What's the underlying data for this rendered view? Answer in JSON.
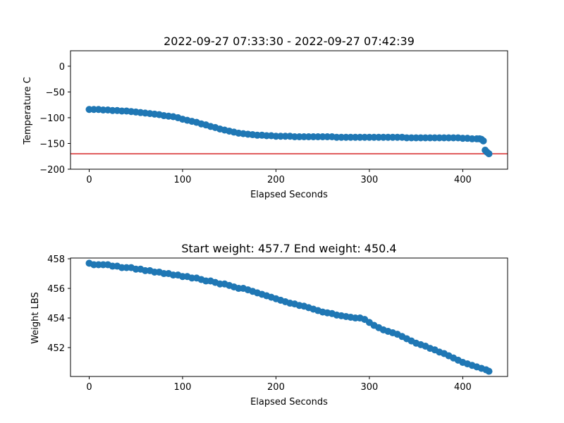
{
  "chart_data": [
    {
      "type": "scatter",
      "title": "2022-09-27 07:33:30 - 2022-09-27 07:42:39",
      "xlabel": "Elapsed Seconds",
      "ylabel": "Temperature C",
      "xlim": [
        -20,
        448
      ],
      "ylim": [
        -200,
        30
      ],
      "xticks": [
        0,
        100,
        200,
        300,
        400
      ],
      "yticks": [
        0,
        -50,
        -100,
        -150,
        -200
      ],
      "marker_color": "#1f77b4",
      "reference_line": {
        "y": -170,
        "color": "#d62728"
      },
      "grid": false,
      "x": [
        0,
        5,
        10,
        15,
        20,
        25,
        30,
        35,
        40,
        45,
        50,
        55,
        60,
        65,
        70,
        75,
        80,
        85,
        90,
        95,
        100,
        105,
        110,
        115,
        120,
        125,
        130,
        135,
        140,
        145,
        150,
        155,
        160,
        165,
        170,
        175,
        180,
        185,
        190,
        195,
        200,
        205,
        210,
        215,
        220,
        225,
        230,
        235,
        240,
        245,
        250,
        255,
        260,
        265,
        270,
        275,
        280,
        285,
        290,
        295,
        300,
        305,
        310,
        315,
        320,
        325,
        330,
        335,
        340,
        345,
        350,
        355,
        360,
        365,
        370,
        375,
        380,
        385,
        390,
        395,
        400,
        405,
        410,
        415,
        418,
        420,
        422,
        424,
        426,
        428
      ],
      "y": [
        -84,
        -84,
        -84,
        -85,
        -85,
        -86,
        -86,
        -87,
        -87,
        -88,
        -89,
        -90,
        -91,
        -92,
        -93,
        -94,
        -96,
        -97,
        -98,
        -100,
        -103,
        -105,
        -107,
        -109,
        -112,
        -114,
        -117,
        -119,
        -122,
        -124,
        -126,
        -128,
        -130,
        -131,
        -132,
        -133,
        -134,
        -134,
        -135,
        -135,
        -136,
        -136,
        -136,
        -136,
        -137,
        -137,
        -137,
        -137,
        -137,
        -137,
        -137,
        -137,
        -137,
        -138,
        -138,
        -138,
        -138,
        -138,
        -138,
        -138,
        -138,
        -138,
        -138,
        -138,
        -138,
        -138,
        -138,
        -138,
        -139,
        -139,
        -139,
        -139,
        -139,
        -139,
        -139,
        -139,
        -139,
        -139,
        -139,
        -139,
        -140,
        -140,
        -141,
        -141,
        -141,
        -142,
        -145,
        -163,
        -167,
        -170
      ]
    },
    {
      "type": "scatter",
      "title": "Start weight: 457.7 End weight: 450.4",
      "xlabel": "Elapsed Seconds",
      "ylabel": "Weight LBS",
      "xlim": [
        -20,
        448
      ],
      "ylim": [
        450.05,
        458.05
      ],
      "xticks": [
        0,
        100,
        200,
        300,
        400
      ],
      "yticks": [
        458,
        456,
        454,
        452
      ],
      "marker_color": "#1f77b4",
      "grid": false,
      "x": [
        0,
        5,
        10,
        15,
        20,
        25,
        30,
        35,
        40,
        45,
        50,
        55,
        60,
        65,
        70,
        75,
        80,
        85,
        90,
        95,
        100,
        105,
        110,
        115,
        120,
        125,
        130,
        135,
        140,
        145,
        150,
        155,
        160,
        165,
        170,
        175,
        180,
        185,
        190,
        195,
        200,
        205,
        210,
        215,
        220,
        225,
        230,
        235,
        240,
        245,
        250,
        255,
        260,
        265,
        270,
        275,
        280,
        285,
        290,
        295,
        300,
        305,
        310,
        315,
        320,
        325,
        330,
        335,
        340,
        345,
        350,
        355,
        360,
        365,
        370,
        375,
        380,
        385,
        390,
        395,
        400,
        405,
        410,
        415,
        420,
        425,
        428
      ],
      "y": [
        457.7,
        457.6,
        457.6,
        457.6,
        457.6,
        457.5,
        457.5,
        457.4,
        457.4,
        457.4,
        457.3,
        457.3,
        457.2,
        457.2,
        457.1,
        457.1,
        457.0,
        457.0,
        456.9,
        456.9,
        456.8,
        456.8,
        456.7,
        456.7,
        456.6,
        456.5,
        456.5,
        456.4,
        456.3,
        456.3,
        456.2,
        456.1,
        456.0,
        456.0,
        455.9,
        455.8,
        455.7,
        455.6,
        455.5,
        455.4,
        455.3,
        455.2,
        455.1,
        455.0,
        454.95,
        454.85,
        454.8,
        454.7,
        454.6,
        454.5,
        454.4,
        454.35,
        454.3,
        454.2,
        454.15,
        454.1,
        454.05,
        454.0,
        454.0,
        453.9,
        453.7,
        453.5,
        453.35,
        453.2,
        453.1,
        453.0,
        452.9,
        452.75,
        452.6,
        452.45,
        452.3,
        452.2,
        452.1,
        451.95,
        451.85,
        451.7,
        451.6,
        451.45,
        451.3,
        451.15,
        451.0,
        450.9,
        450.8,
        450.7,
        450.6,
        450.5,
        450.4
      ]
    }
  ]
}
